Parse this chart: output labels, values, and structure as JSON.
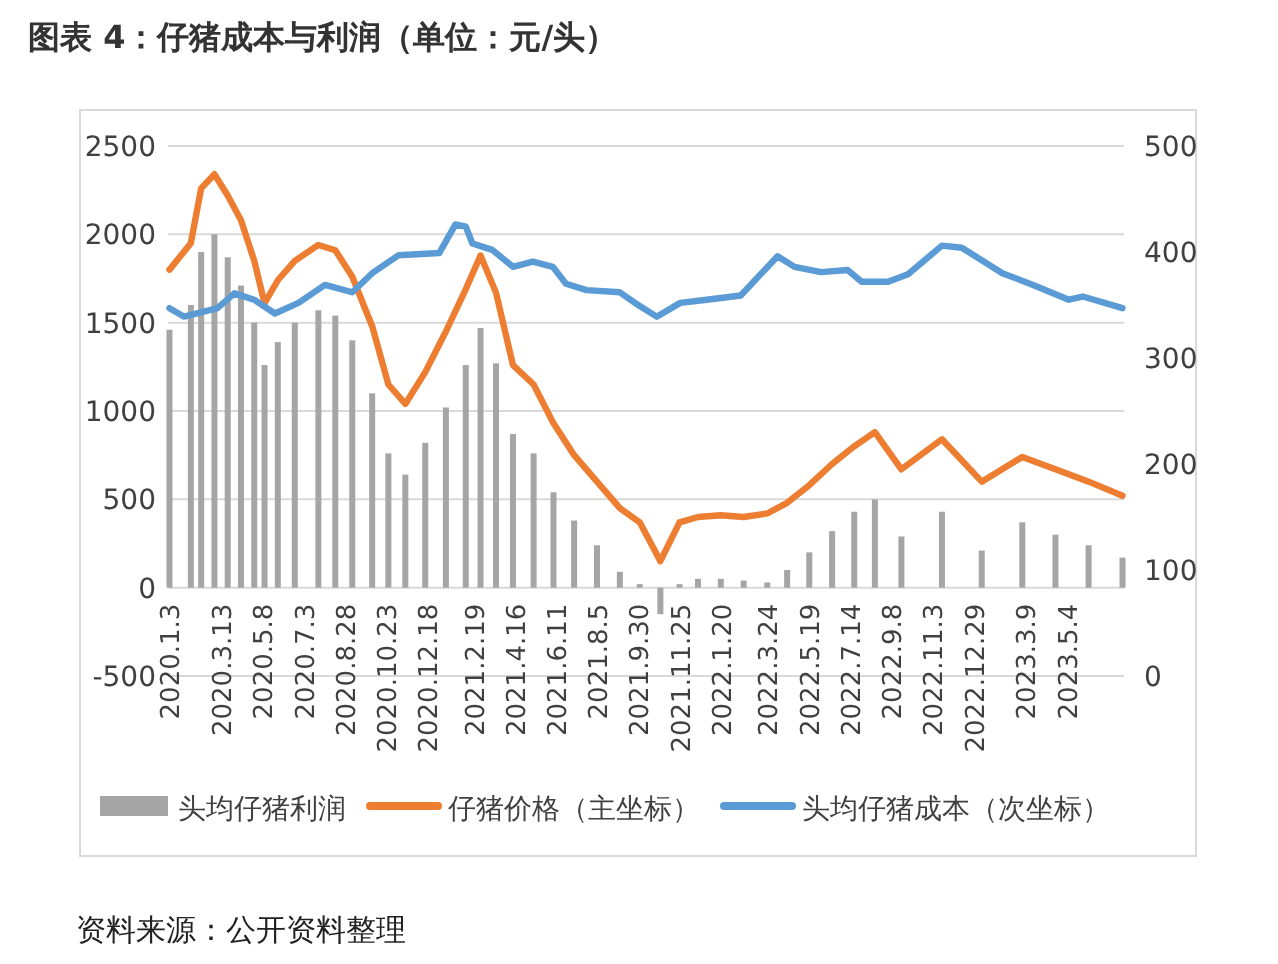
{
  "chart_data": {
    "type": "bar",
    "title": "图表 4：仔猪成本与利润（单位：元/头）",
    "annotations": [
      "资料来源：公开资料整理"
    ],
    "x": [
      "2020-01-03",
      "2020-02-01",
      "2020-02-15",
      "2020-03-04",
      "2020-03-22",
      "2020-04-09",
      "2020-04-27",
      "2020-05-11",
      "2020-05-29",
      "2020-06-21",
      "2020-07-23",
      "2020-08-15",
      "2020-09-07",
      "2020-10-04",
      "2020-10-26",
      "2020-11-18",
      "2020-12-15",
      "2021-01-12",
      "2021-02-08",
      "2021-02-28",
      "2021-03-21",
      "2021-04-13",
      "2021-05-11",
      "2021-06-07",
      "2021-07-05",
      "2021-08-05",
      "2021-09-05",
      "2021-10-02",
      "2021-10-30",
      "2021-11-25",
      "2021-12-20",
      "2022-01-20",
      "2022-02-20",
      "2022-03-24",
      "2022-04-20",
      "2022-05-20",
      "2022-06-20",
      "2022-07-20",
      "2022-08-17",
      "2022-09-22",
      "2022-11-16",
      "2023-01-09",
      "2023-03-05",
      "2023-04-19",
      "2023-06-03",
      "2023-07-19"
    ],
    "series": [
      {
        "name": "头均仔猪利润",
        "axis": "y",
        "color": "#a5a5a5",
        "values": [
          1460,
          1600,
          1900,
          2000,
          1870,
          1710,
          1500,
          1260,
          1390,
          1500,
          1570,
          1540,
          1400,
          1100,
          760,
          640,
          820,
          1020,
          1260,
          1470,
          1270,
          870,
          760,
          540,
          380,
          240,
          90,
          20,
          -150,
          20,
          50,
          50,
          40,
          30,
          100,
          200,
          320,
          430,
          500,
          290,
          430,
          210,
          370,
          300,
          240,
          170
        ]
      },
      {
        "name": "仔猪价格（主坐标）",
        "type": "line",
        "axis": "y",
        "color": "#ed7d31",
        "values": [
          1800,
          1950,
          2260,
          2340,
          2220,
          2080,
          1850,
          1610,
          1740,
          1850,
          1940,
          1910,
          1760,
          1480,
          1150,
          1040,
          1220,
          1450,
          1690,
          1880,
          1670,
          1260,
          1150,
          930,
          750,
          600,
          450,
          370,
          150,
          370,
          400,
          410,
          400,
          420,
          480,
          580,
          700,
          800,
          880,
          670,
          840,
          600,
          740,
          670,
          600,
          520
        ]
      },
      {
        "name": "头均仔猪成本（次坐标）",
        "type": "line",
        "axis": "y2",
        "color": "#5b9bd5",
        "x": [
          "2020-01-03",
          "2020-01-23",
          "2020-03-08",
          "2020-03-31",
          "2020-04-27",
          "2020-05-25",
          "2020-06-26",
          "2020-08-01",
          "2020-09-07",
          "2020-10-04",
          "2020-11-09",
          "2021-01-03",
          "2021-01-25",
          "2021-02-08",
          "2021-02-17",
          "2021-03-16",
          "2021-04-13",
          "2021-05-10",
          "2021-06-06",
          "2021-06-24",
          "2021-07-22",
          "2021-09-05",
          "2021-10-02",
          "2021-10-25",
          "2021-11-26",
          "2022-01-01",
          "2022-02-16",
          "2022-04-07",
          "2022-04-30",
          "2022-06-05",
          "2022-07-11",
          "2022-07-30",
          "2022-09-04",
          "2022-10-01",
          "2022-11-16",
          "2022-12-13",
          "2023-02-06",
          "2023-03-23",
          "2023-05-07",
          "2023-05-26",
          "2023-07-19"
        ],
        "values": [
          347,
          339,
          347,
          361,
          355,
          342,
          352,
          369,
          362,
          380,
          397,
          399,
          426,
          424,
          408,
          402,
          386,
          391,
          386,
          370,
          364,
          362,
          349,
          339,
          352,
          355,
          359,
          396,
          386,
          381,
          383,
          372,
          372,
          379,
          406,
          404,
          380,
          368,
          355,
          358,
          347
        ]
      }
    ],
    "xlim": [
      "2020-01-01",
      "2023-07-21"
    ],
    "xticks": [
      {
        "value": "2020-01-03",
        "label": "2020.1.3"
      },
      {
        "value": "2020-03-13",
        "label": "2020.3.13"
      },
      {
        "value": "2020-05-08",
        "label": "2020.5.8"
      },
      {
        "value": "2020-07-03",
        "label": "2020.7.3"
      },
      {
        "value": "2020-08-28",
        "label": "2020.8.28"
      },
      {
        "value": "2020-10-23",
        "label": "2020.10.23"
      },
      {
        "value": "2020-12-18",
        "label": "2020.12.18"
      },
      {
        "value": "2021-02-19",
        "label": "2021.2.19"
      },
      {
        "value": "2021-04-16",
        "label": "2021.4.16"
      },
      {
        "value": "2021-06-11",
        "label": "2021.6.11"
      },
      {
        "value": "2021-08-05",
        "label": "2021.8.5"
      },
      {
        "value": "2021-09-30",
        "label": "2021.9.30"
      },
      {
        "value": "2021-11-25",
        "label": "2021.11.25"
      },
      {
        "value": "2022-01-20",
        "label": "2022.1.20"
      },
      {
        "value": "2022-03-24",
        "label": "2022.3.24"
      },
      {
        "value": "2022-05-19",
        "label": "2022.5.19"
      },
      {
        "value": "2022-07-14",
        "label": "2022.7.14"
      },
      {
        "value": "2022-09-08",
        "label": "2022.9.8"
      },
      {
        "value": "2022-11-03",
        "label": "2022.11.3"
      },
      {
        "value": "2022-12-29",
        "label": "2022.12.29"
      },
      {
        "value": "2023-03-09",
        "label": "2023.3.9"
      },
      {
        "value": "2023-05-04",
        "label": "2023.5.4"
      }
    ],
    "ylim": [
      -500,
      2500
    ],
    "yticks": [
      -500,
      0,
      500,
      1000,
      1500,
      2000,
      2500
    ],
    "y2lim": [
      0,
      500
    ],
    "y2ticks": [
      0,
      100,
      200,
      300,
      400,
      500
    ],
    "grid": "y",
    "legend": "bottom"
  }
}
